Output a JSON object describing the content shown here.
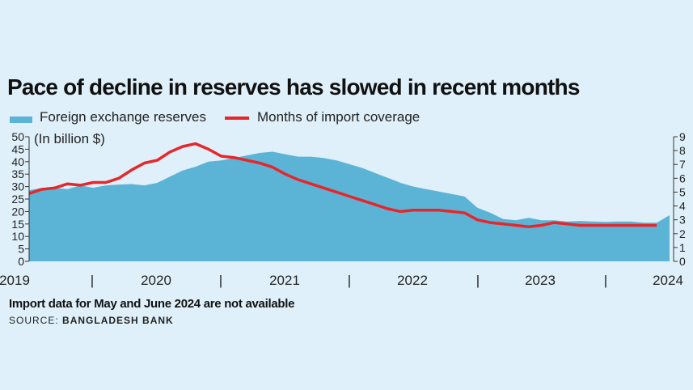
{
  "title": "Pace of decline in reserves has slowed in recent months",
  "footnote": "Import data for May and June 2024 are not available",
  "source_label": "SOURCE:",
  "source_name": "BANGLADESH BANK",
  "colors": {
    "reserves": "#5bb4d6",
    "import": "#e8262a",
    "background": "#dff0fa"
  },
  "chart_data": {
    "type": "area",
    "title": "Pace of decline in reserves has slowed in recent months",
    "legend": [
      "Foreign exchange reserves",
      "Months of import coverage"
    ],
    "left_axis_unit": "(In billion $)",
    "left_axis": {
      "min": 0,
      "max": 50,
      "ticks": [
        0,
        5,
        10,
        15,
        20,
        25,
        30,
        35,
        40,
        45,
        50
      ]
    },
    "right_axis": {
      "min": 0,
      "max": 9,
      "ticks": [
        0,
        1,
        2,
        3,
        4,
        5,
        6,
        7,
        8,
        9
      ]
    },
    "x_ticks": [
      "2019",
      "|",
      "2020",
      "|",
      "2021",
      "|",
      "2022",
      "|",
      "2023",
      "|",
      "2024"
    ],
    "x_range": [
      2019.0,
      2024.0
    ],
    "series": [
      {
        "name": "Foreign exchange reserves",
        "axis": "left",
        "x": [
          2019.0,
          2019.1,
          2019.2,
          2019.3,
          2019.4,
          2019.5,
          2019.6,
          2019.7,
          2019.8,
          2019.9,
          2020.0,
          2020.1,
          2020.2,
          2020.3,
          2020.4,
          2020.5,
          2020.6,
          2020.7,
          2020.8,
          2020.9,
          2021.0,
          2021.1,
          2021.2,
          2021.3,
          2021.4,
          2021.5,
          2021.6,
          2021.7,
          2021.8,
          2021.9,
          2022.0,
          2022.1,
          2022.2,
          2022.3,
          2022.4,
          2022.5,
          2022.6,
          2022.7,
          2022.8,
          2022.9,
          2023.0,
          2023.1,
          2023.2,
          2023.3,
          2023.4,
          2023.5,
          2023.6,
          2023.7,
          2023.8,
          2023.9,
          2024.0
        ],
        "values": [
          28.5,
          29.5,
          29.5,
          29.0,
          30.5,
          29.5,
          30.5,
          30.8,
          31.0,
          30.5,
          31.5,
          34.0,
          36.5,
          38.0,
          40.0,
          40.5,
          41.5,
          42.5,
          43.5,
          44.0,
          43.0,
          42.0,
          42.0,
          41.5,
          40.5,
          39.0,
          37.5,
          35.5,
          33.5,
          31.5,
          30.0,
          29.0,
          28.0,
          27.0,
          26.0,
          21.5,
          19.5,
          17.0,
          16.5,
          17.5,
          16.5,
          16.5,
          16.0,
          16.2,
          16.0,
          15.8,
          16.0,
          16.0,
          15.5,
          15.5,
          18.5
        ]
      },
      {
        "name": "Months of import coverage",
        "axis": "right",
        "x": [
          2019.0,
          2019.1,
          2019.2,
          2019.3,
          2019.4,
          2019.5,
          2019.6,
          2019.7,
          2019.8,
          2019.9,
          2020.0,
          2020.1,
          2020.2,
          2020.3,
          2020.4,
          2020.5,
          2020.6,
          2020.7,
          2020.8,
          2020.9,
          2021.0,
          2021.1,
          2021.2,
          2021.3,
          2021.4,
          2021.5,
          2021.6,
          2021.7,
          2021.8,
          2021.9,
          2022.0,
          2022.1,
          2022.2,
          2022.3,
          2022.4,
          2022.5,
          2022.6,
          2022.7,
          2022.8,
          2022.9,
          2023.0,
          2023.1,
          2023.2,
          2023.3,
          2023.4,
          2023.5,
          2023.6,
          2023.7,
          2023.8,
          2023.9
        ],
        "values": [
          4.9,
          5.2,
          5.3,
          5.6,
          5.5,
          5.7,
          5.7,
          6.0,
          6.6,
          7.1,
          7.3,
          7.9,
          8.3,
          8.5,
          8.1,
          7.6,
          7.5,
          7.3,
          7.1,
          6.8,
          6.3,
          5.9,
          5.6,
          5.3,
          5.0,
          4.7,
          4.4,
          4.1,
          3.8,
          3.6,
          3.7,
          3.7,
          3.7,
          3.6,
          3.5,
          3.0,
          2.8,
          2.7,
          2.6,
          2.5,
          2.6,
          2.8,
          2.7,
          2.6,
          2.6,
          2.6,
          2.6,
          2.6,
          2.6,
          2.6
        ]
      }
    ]
  }
}
